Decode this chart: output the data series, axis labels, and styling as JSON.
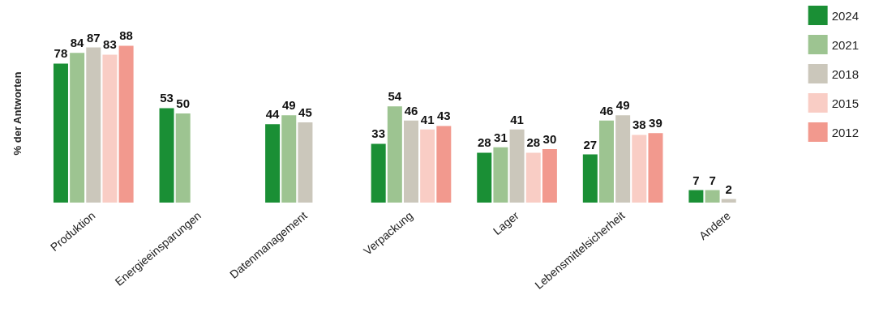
{
  "chart_data": {
    "type": "bar",
    "ylabel": "% der Antworten",
    "categories": [
      "Produktion",
      "Energieeinsparungen",
      "Datenmanagement",
      "Verpackung",
      "Lager",
      "Lebensmittelsicherheit",
      "Andere"
    ],
    "series": [
      {
        "name": "2024",
        "color": "#1a8f35",
        "values": [
          78,
          53,
          44,
          33,
          28,
          27,
          7
        ]
      },
      {
        "name": "2021",
        "color": "#9dc491",
        "values": [
          84,
          50,
          49,
          54,
          31,
          46,
          7
        ]
      },
      {
        "name": "2018",
        "color": "#cbc7bb",
        "values": [
          87,
          null,
          45,
          46,
          41,
          49,
          2
        ]
      },
      {
        "name": "2015",
        "color": "#f9cdc5",
        "values": [
          83,
          null,
          null,
          41,
          28,
          38,
          null
        ]
      },
      {
        "name": "2012",
        "color": "#f2998e",
        "values": [
          88,
          null,
          null,
          43,
          30,
          39,
          null
        ]
      }
    ],
    "data_labels": true,
    "grid": false,
    "legend": "right"
  }
}
